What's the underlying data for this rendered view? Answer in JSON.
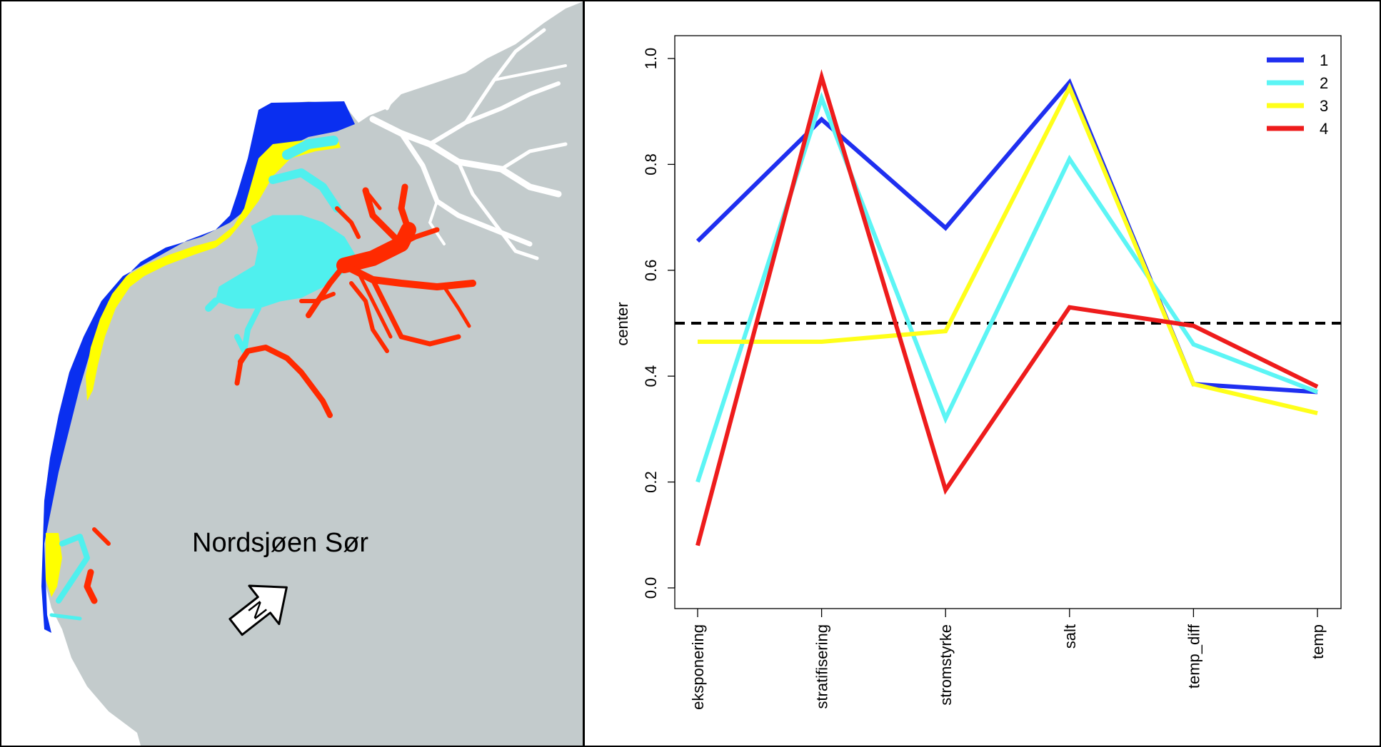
{
  "map": {
    "region_label": "Nordsjøen Sør",
    "compass_letter": "N",
    "colors": {
      "land": "#c3cbcc",
      "background": "#ffffff",
      "cluster_1": "#0a2ff0",
      "cluster_2": "#4ff0ee",
      "cluster_3": "#ffff00",
      "cluster_4": "#ff2a00"
    }
  },
  "chart_data": {
    "type": "line",
    "categories": [
      "eksponering",
      "stratifisering",
      "stromstyrke",
      "salt",
      "temp_diff",
      "temp"
    ],
    "ylabel": "center",
    "xlabel": "",
    "ylim": [
      0.0,
      1.0
    ],
    "yticks": [
      "0.0",
      "0.2",
      "0.4",
      "0.6",
      "0.8",
      "1.0"
    ],
    "reference_line": {
      "y": 0.5,
      "style": "dashed",
      "color": "#000000"
    },
    "legend_position": "top-right",
    "series": [
      {
        "name": "1",
        "color": "#1f2ff0",
        "values": [
          0.655,
          0.885,
          0.68,
          0.955,
          0.385,
          0.37
        ]
      },
      {
        "name": "2",
        "color": "#5cf5f5",
        "values": [
          0.2,
          0.925,
          0.32,
          0.81,
          0.46,
          0.37
        ]
      },
      {
        "name": "3",
        "color": "#ffff1a",
        "values": [
          0.465,
          0.465,
          0.485,
          0.945,
          0.385,
          0.33
        ]
      },
      {
        "name": "4",
        "color": "#ee1c1c",
        "values": [
          0.08,
          0.965,
          0.185,
          0.53,
          0.495,
          0.38
        ]
      }
    ]
  }
}
